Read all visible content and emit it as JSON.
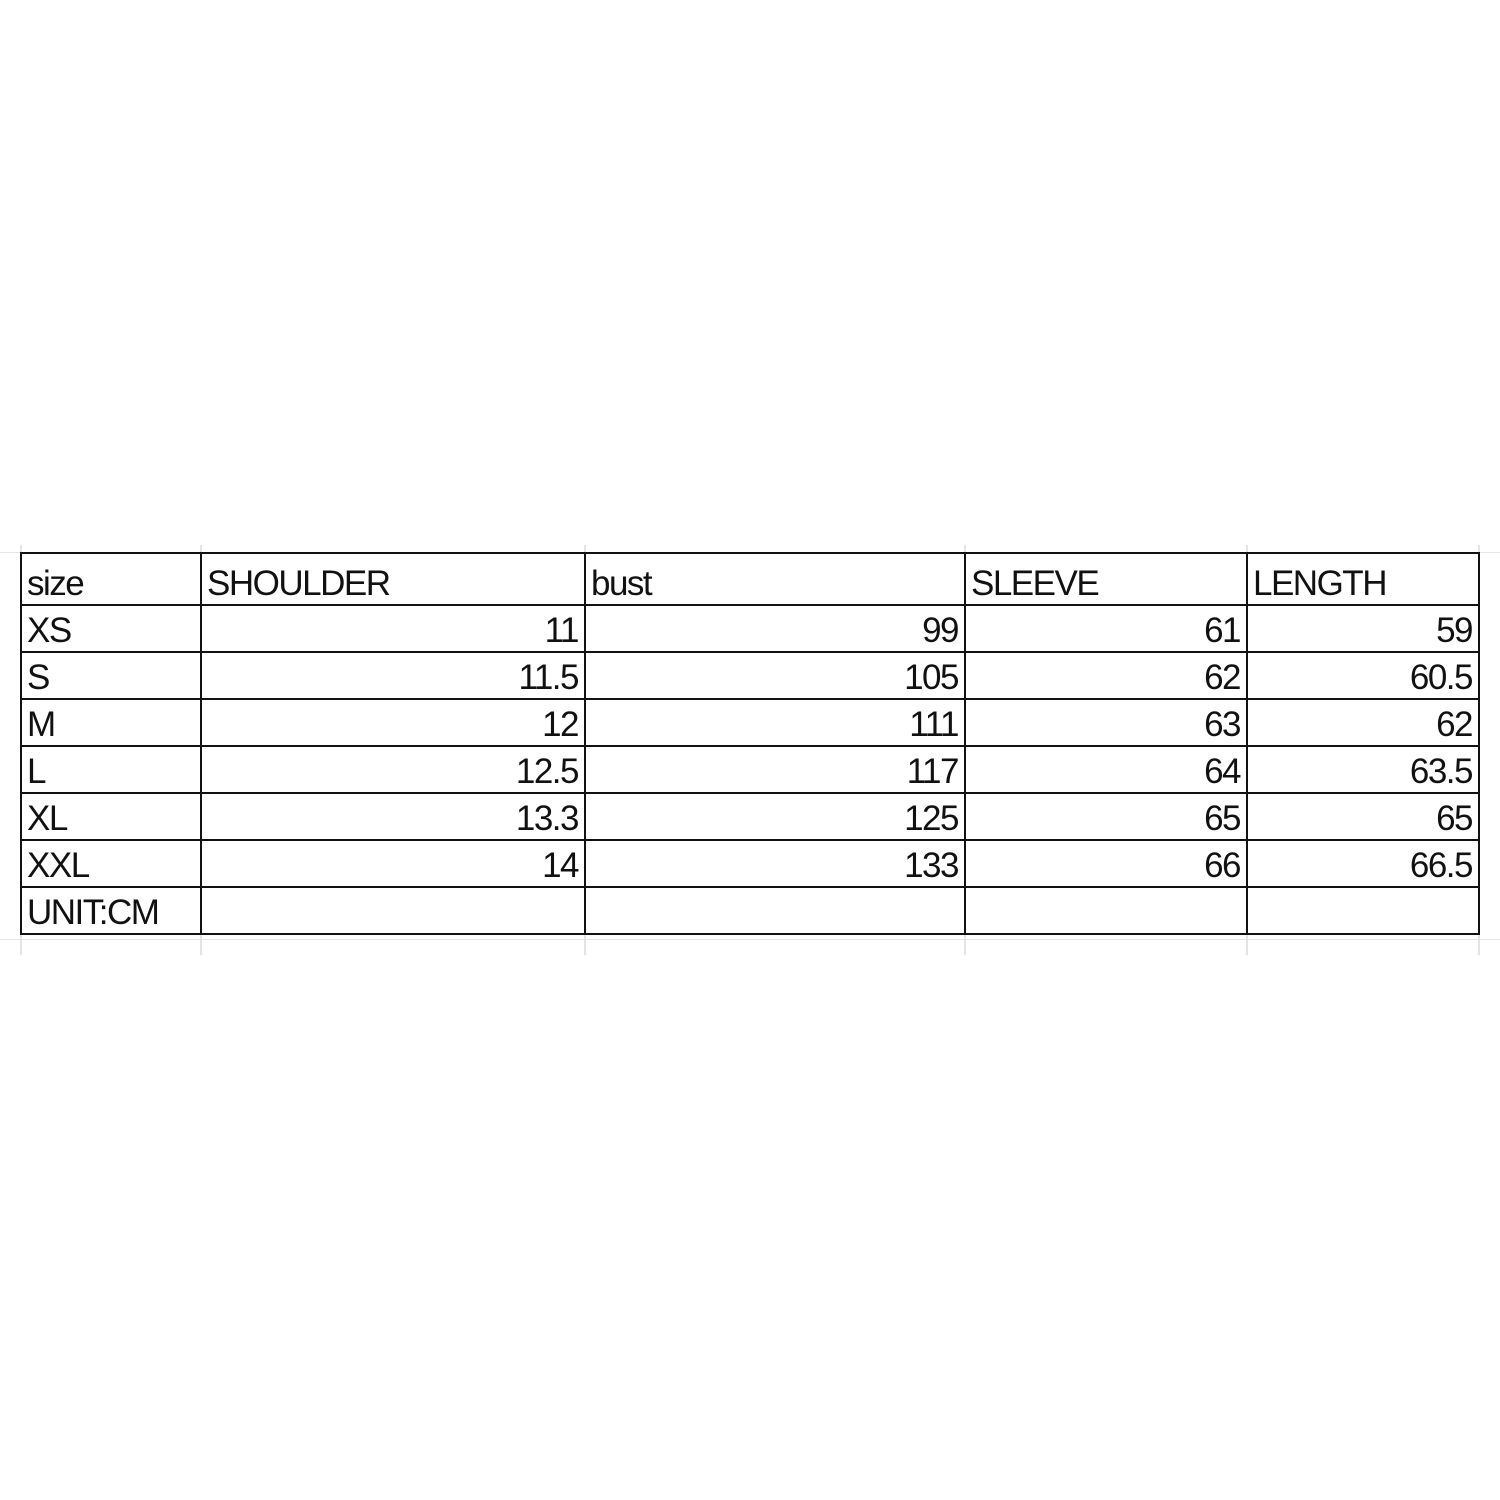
{
  "size_chart": {
    "headers": [
      "size",
      "SHOULDER",
      "bust",
      "SLEEVE",
      "LENGTH"
    ],
    "rows": [
      [
        "XS",
        "11",
        "99",
        "61",
        "59"
      ],
      [
        "S",
        "11.5",
        "105",
        "62",
        "60.5"
      ],
      [
        "M",
        "12",
        "111",
        "63",
        "62"
      ],
      [
        "L",
        "12.5",
        "117",
        "64",
        "63.5"
      ],
      [
        "XL",
        "13.3",
        "125",
        "65",
        "65"
      ],
      [
        "XXL",
        "14",
        "133",
        "66",
        "66.5"
      ]
    ],
    "unit_label": "UNIT:CM"
  }
}
